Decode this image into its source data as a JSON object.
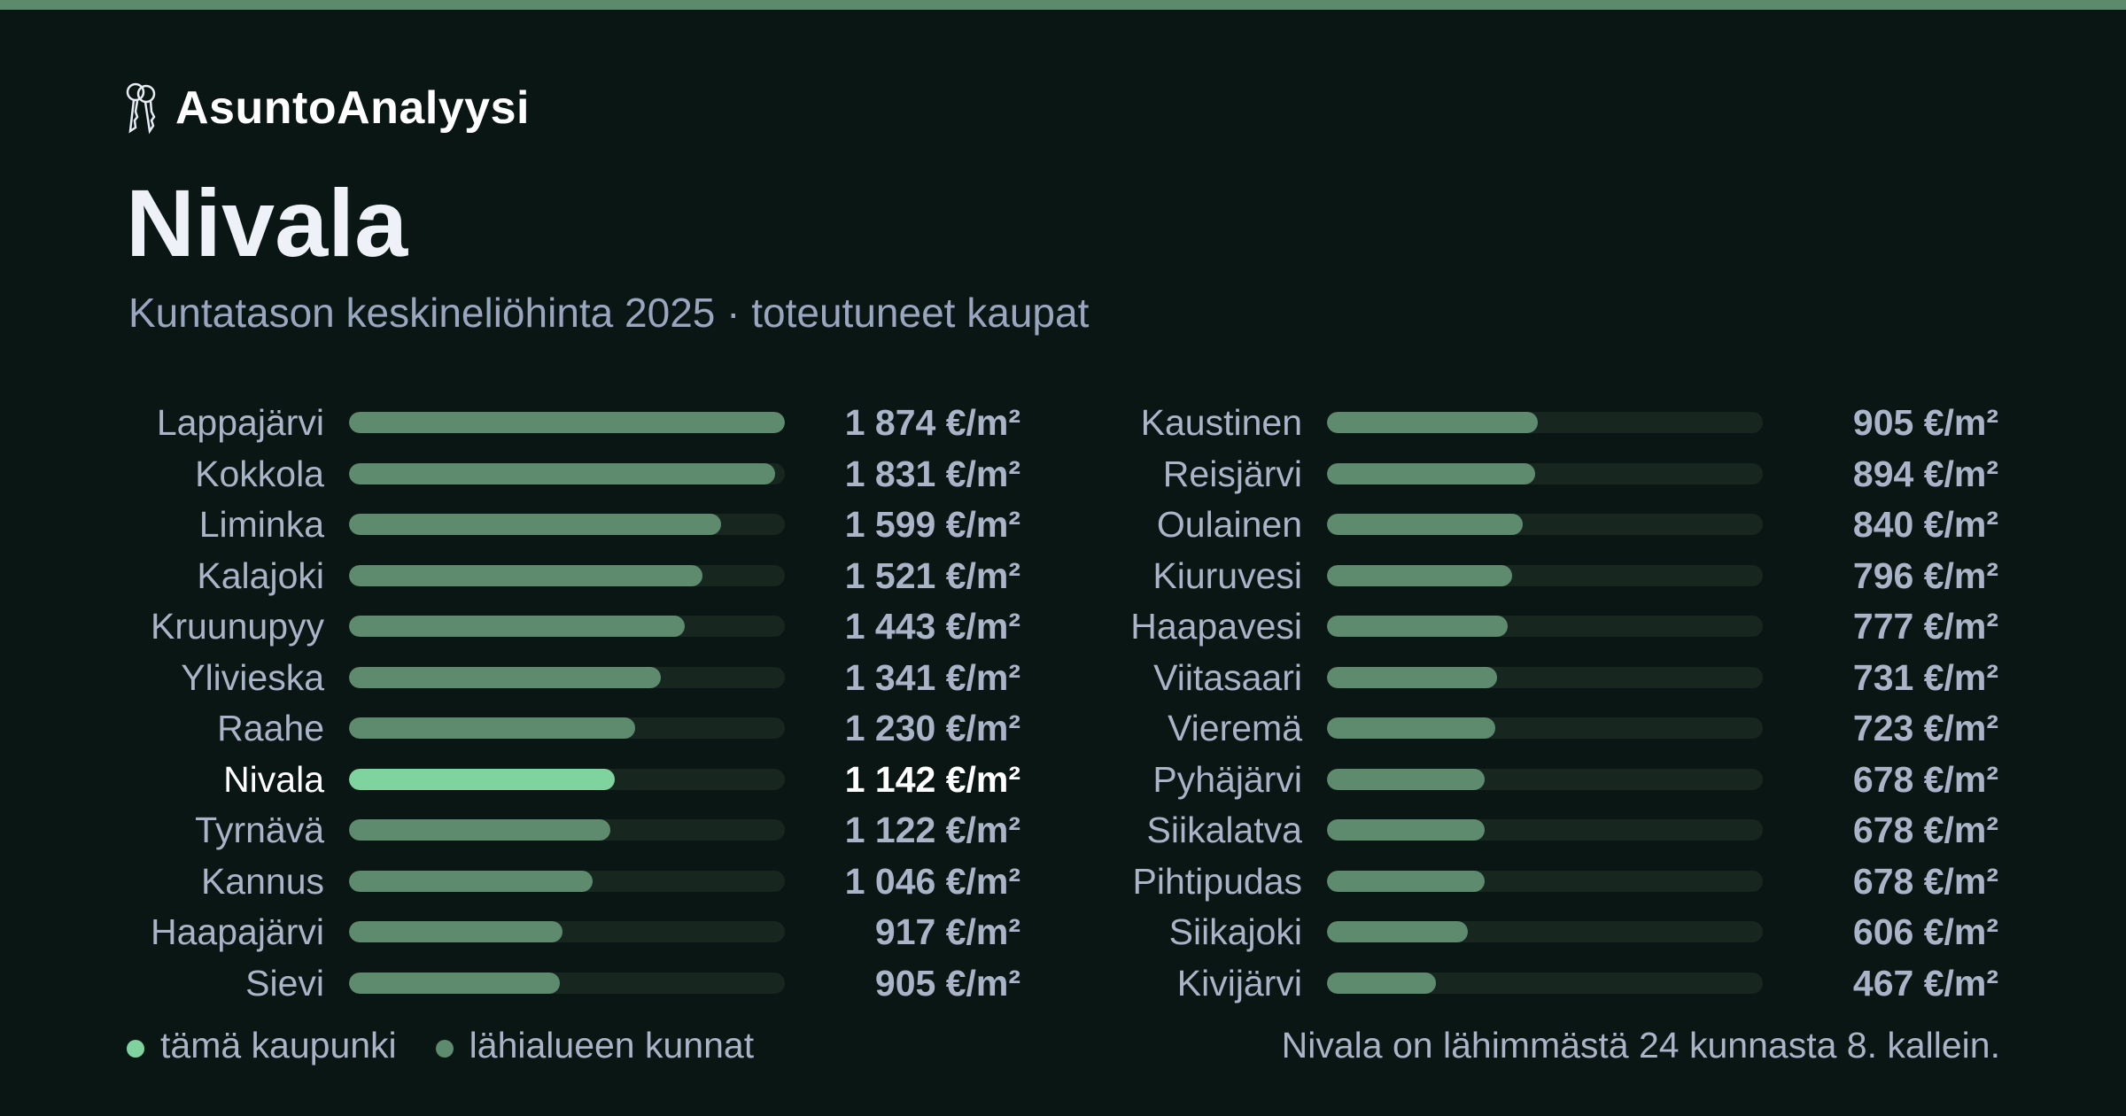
{
  "brand": {
    "name": "AsuntoAnalyysi",
    "icon": "keys-icon"
  },
  "title": "Nivala",
  "subtitle": "Kuntatason keskineliöhinta 2025 · toteutuneet kaupat",
  "colors": {
    "background": "#0a1613",
    "accent": "#5b8a6c",
    "highlight": "#7fd39f",
    "bar": "#5e8a6d",
    "track": "#17271f"
  },
  "chart_data": {
    "type": "bar",
    "orientation": "horizontal",
    "unit": "€/m²",
    "xlim": [
      0,
      1874
    ],
    "highlight": "Nivala",
    "categories": [
      "Lappajärvi",
      "Kokkola",
      "Liminka",
      "Kalajoki",
      "Kruunupyy",
      "Ylivieska",
      "Raahe",
      "Nivala",
      "Tyrnävä",
      "Kannus",
      "Haapajärvi",
      "Sievi",
      "Kaustinen",
      "Reisjärvi",
      "Oulainen",
      "Kiuruvesi",
      "Haapavesi",
      "Viitasaari",
      "Vieremä",
      "Pyhäjärvi",
      "Siikalatva",
      "Pihtipudas",
      "Siikajoki",
      "Kivijärvi"
    ],
    "values": [
      1874,
      1831,
      1599,
      1521,
      1443,
      1341,
      1230,
      1142,
      1122,
      1046,
      917,
      905,
      905,
      894,
      840,
      796,
      777,
      731,
      723,
      678,
      678,
      678,
      606,
      467
    ],
    "value_labels": [
      "1 874 €/m²",
      "1 831 €/m²",
      "1 599 €/m²",
      "1 521 €/m²",
      "1 443 €/m²",
      "1 341 €/m²",
      "1 230 €/m²",
      "1 142 €/m²",
      "1 122 €/m²",
      "1 046 €/m²",
      "917 €/m²",
      "905 €/m²",
      "905 €/m²",
      "894 €/m²",
      "840 €/m²",
      "796 €/m²",
      "777 €/m²",
      "731 €/m²",
      "723 €/m²",
      "678 €/m²",
      "678 €/m²",
      "678 €/m²",
      "606 €/m²",
      "467 €/m²"
    ]
  },
  "legend": {
    "this_city": "tämä kaupunki",
    "nearby": "lähialueen kunnat"
  },
  "note": "Nivala on lähimmästä 24 kunnasta 8. kallein."
}
